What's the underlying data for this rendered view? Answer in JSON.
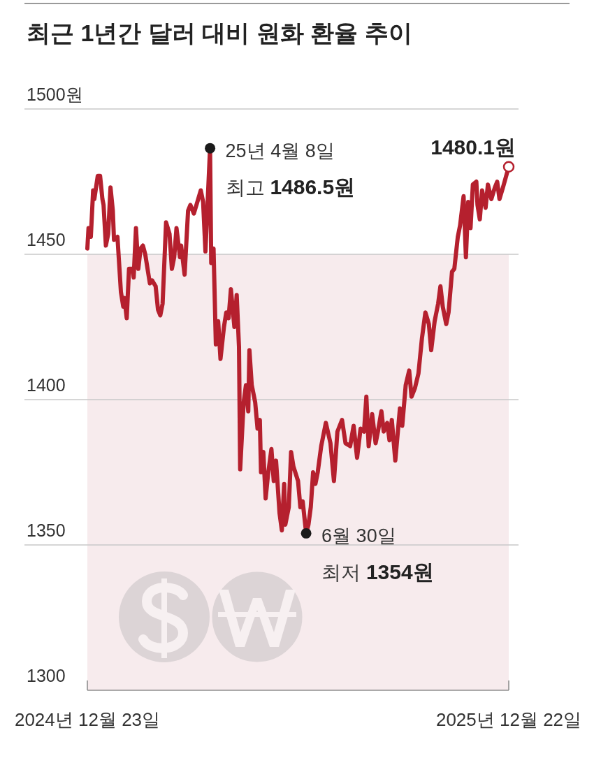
{
  "chart_data": {
    "type": "line",
    "title": "최근 1년간 달러 대비 원화 환율 추이",
    "x": [
      "2024-12-23",
      "2024-12-24",
      "2024-12-26",
      "2024-12-28",
      "2024-12-29",
      "2025-01-01",
      "2025-01-03",
      "2025-01-05",
      "2025-01-06",
      "2025-01-08",
      "2025-01-10",
      "2025-01-12",
      "2025-01-14",
      "2025-01-15",
      "2025-01-18",
      "2025-01-21",
      "2025-01-23",
      "2025-01-24",
      "2025-01-26",
      "2025-01-28",
      "2025-01-31",
      "2025-02-01",
      "2025-02-03",
      "2025-02-05",
      "2025-02-07",
      "2025-02-09",
      "2025-02-11",
      "2025-02-15",
      "2025-02-17",
      "2025-02-20",
      "2025-02-22",
      "2025-02-24",
      "2025-02-26",
      "2025-03-01",
      "2025-03-04",
      "2025-03-06",
      "2025-03-08",
      "2025-03-10",
      "2025-03-13",
      "2025-03-14",
      "2025-03-17",
      "2025-03-20",
      "2025-03-22",
      "2025-03-25",
      "2025-03-28",
      "2025-03-31",
      "2025-04-02",
      "2025-04-04",
      "2025-04-08",
      "2025-04-09",
      "2025-04-11",
      "2025-04-13",
      "2025-04-15",
      "2025-04-17",
      "2025-04-20",
      "2025-04-22",
      "2025-04-24",
      "2025-04-26",
      "2025-04-29",
      "2025-05-01",
      "2025-05-03",
      "2025-05-04",
      "2025-05-07",
      "2025-05-09",
      "2025-05-11",
      "2025-05-12",
      "2025-05-14",
      "2025-05-17",
      "2025-05-19",
      "2025-05-21",
      "2025-05-22",
      "2025-05-24",
      "2025-05-26",
      "2025-05-28",
      "2025-05-31",
      "2025-06-02",
      "2025-06-04",
      "2025-06-07",
      "2025-06-09",
      "2025-06-11",
      "2025-06-12",
      "2025-06-15",
      "2025-06-17",
      "2025-06-19",
      "2025-06-23",
      "2025-06-25",
      "2025-06-27",
      "2025-06-30",
      "2025-07-02",
      "2025-07-04",
      "2025-07-06",
      "2025-07-08",
      "2025-07-10",
      "2025-07-13",
      "2025-07-17",
      "2025-07-21",
      "2025-07-24",
      "2025-07-27",
      "2025-07-31",
      "2025-08-03",
      "2025-08-07",
      "2025-08-10",
      "2025-08-13",
      "2025-08-16",
      "2025-08-19",
      "2025-08-21",
      "2025-08-23",
      "2025-08-26",
      "2025-08-29",
      "2025-08-31",
      "2025-09-03",
      "2025-09-05",
      "2025-09-08",
      "2025-09-10",
      "2025-09-12",
      "2025-09-15",
      "2025-09-19",
      "2025-09-21",
      "2025-09-24",
      "2025-09-27",
      "2025-09-29",
      "2025-10-02",
      "2025-10-05",
      "2025-10-08",
      "2025-10-11",
      "2025-10-14",
      "2025-10-16",
      "2025-10-19",
      "2025-10-22",
      "2025-10-24",
      "2025-10-26",
      "2025-10-29",
      "2025-10-31",
      "2025-11-03",
      "2025-11-05",
      "2025-11-08",
      "2025-11-10",
      "2025-11-13",
      "2025-11-15",
      "2025-11-17",
      "2025-11-19",
      "2025-11-21",
      "2025-11-24",
      "2025-11-25",
      "2025-11-27",
      "2025-11-29",
      "2025-12-02",
      "2025-12-04",
      "2025-12-07",
      "2025-12-10",
      "2025-12-12",
      "2025-12-14",
      "2025-12-17",
      "2025-12-22"
    ],
    "series": [
      {
        "color": "#b5202e",
        "values": [
          1452,
          1459,
          1456,
          1472,
          1469,
          1477,
          1477,
          1469,
          1467,
          1453,
          1457,
          1473,
          1465,
          1455,
          1456,
          1437,
          1432,
          1435,
          1428,
          1445,
          1445,
          1442,
          1459,
          1445,
          1452,
          1453,
          1450,
          1440,
          1441,
          1439,
          1431,
          1429,
          1433,
          1461,
          1457,
          1445,
          1449,
          1459,
          1449,
          1453,
          1443,
          1465,
          1467,
          1464,
          1468,
          1472,
          1468,
          1451,
          1486.5,
          1447,
          1452,
          1419,
          1427,
          1414,
          1425,
          1430,
          1428,
          1438,
          1425,
          1436,
          1418,
          1376,
          1399,
          1405,
          1396,
          1417,
          1405,
          1399,
          1390,
          1393,
          1375,
          1382,
          1366,
          1374,
          1383,
          1372,
          1379,
          1361,
          1355,
          1371,
          1357,
          1363,
          1382,
          1377,
          1372,
          1363,
          1365,
          1354,
          1357,
          1363,
          1375,
          1371,
          1375,
          1384,
          1392,
          1385,
          1372,
          1389,
          1393,
          1385,
          1384,
          1391,
          1380,
          1390,
          1389,
          1401,
          1384,
          1395,
          1385,
          1389,
          1396,
          1389,
          1392,
          1386,
          1393,
          1379,
          1397,
          1391,
          1405,
          1410,
          1401,
          1404,
          1409,
          1421,
          1430,
          1426,
          1417,
          1427,
          1433,
          1439,
          1432,
          1426,
          1430,
          1444,
          1445,
          1456,
          1460,
          1470,
          1449,
          1468,
          1459,
          1474,
          1475,
          1467,
          1462,
          1472,
          1466,
          1474,
          1469,
          1473,
          1475,
          1469,
          1473,
          1480.1
        ]
      },
      {
        "type": "scatter",
        "color": "#1a1a1a",
        "marker": "circle",
        "x": [
          "2025-04-08",
          "2025-06-30"
        ],
        "values": [
          1486.5,
          1354
        ]
      },
      {
        "type": "scatter",
        "color": "#b5202e",
        "marker": "circle",
        "x": [
          "2025-12-22"
        ],
        "values": [
          1480.1
        ]
      }
    ],
    "xlim": [
      "2024-12-23",
      "2025-12-22"
    ],
    "xticks": [
      {
        "value": "2024-12-23",
        "label": "2024년 12월 23일"
      },
      {
        "value": "2025-12-22",
        "label": "2025년 12월 22일"
      }
    ],
    "ylim": [
      1300,
      1500
    ],
    "yticks": [
      1300,
      1350,
      1400,
      1450,
      {
        "value": 1500,
        "label": "1500원"
      }
    ],
    "grid": "y",
    "bands": [
      {
        "axis": "y",
        "from": 1300,
        "to": 1450,
        "color": "#f7ebed"
      }
    ],
    "annotations": [
      {
        "text": "25년 4월 8일\n최고 1486.5원",
        "x": "2025-04-08",
        "y": 1486.5
      },
      {
        "text": "6월 30일\n최저 1354원",
        "x": "2025-06-30",
        "y": 1354
      },
      {
        "text": "1480.1원",
        "x": "2025-12-22",
        "y": 1480.1
      }
    ]
  }
}
